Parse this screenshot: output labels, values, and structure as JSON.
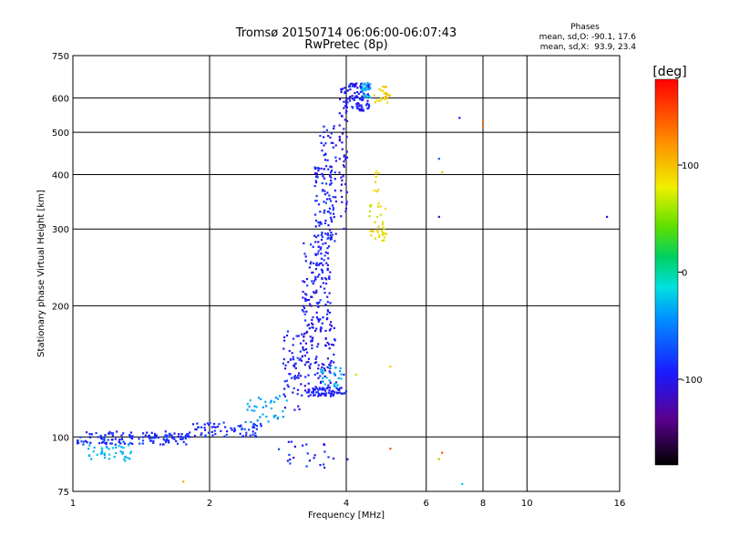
{
  "chart_data": {
    "type": "scatter",
    "title": "Tromsø 20150714 06:06:00-06:07:43",
    "subtitle": "RwPretec (8p)",
    "xlabel": "Frequency [MHz]",
    "ylabel": "Stationary phase Virtual Height [km]",
    "x_scale": "log",
    "y_scale": "log",
    "xlim": [
      1,
      16
    ],
    "ylim": [
      75,
      750
    ],
    "x_ticks": [
      {
        "value": 1,
        "label": "1"
      },
      {
        "value": 2,
        "label": "2"
      },
      {
        "value": 4,
        "label": "4"
      },
      {
        "value": 6,
        "label": "6"
      },
      {
        "value": 8,
        "label": "8"
      },
      {
        "value": 10,
        "label": "10"
      },
      {
        "value": 16,
        "label": "16"
      }
    ],
    "y_ticks": [
      {
        "value": 75,
        "label": "75"
      },
      {
        "value": 100,
        "label": "100"
      },
      {
        "value": 200,
        "label": "200"
      },
      {
        "value": 300,
        "label": "300"
      },
      {
        "value": 400,
        "label": "400"
      },
      {
        "value": 500,
        "label": "500"
      },
      {
        "value": 600,
        "label": "600"
      },
      {
        "value": 750,
        "label": "750"
      }
    ],
    "grid": true,
    "stats": {
      "heading": "Phases",
      "line_o": "mean, sd,O: -90.1, 17.6",
      "line_x": "mean, sd,X:  93.9, 23.4"
    },
    "colorbar": {
      "label": "[deg]",
      "range": [
        -180,
        180
      ],
      "ticks": [
        {
          "value": 100,
          "label": "100"
        },
        {
          "value": 0,
          "label": "0"
        },
        {
          "value": -100,
          "label": "-100"
        }
      ]
    },
    "point_groups": [
      {
        "phase": -95,
        "x_range": [
          1.02,
          1.8
        ],
        "y_range": [
          96,
          103
        ],
        "count": 140
      },
      {
        "phase": -40,
        "x_range": [
          1.08,
          1.35
        ],
        "y_range": [
          88,
          96
        ],
        "count": 40
      },
      {
        "phase": -95,
        "x_range": [
          1.8,
          2.6
        ],
        "y_range": [
          100,
          108
        ],
        "count": 70
      },
      {
        "phase": -50,
        "x_range": [
          2.4,
          3.0
        ],
        "y_range": [
          108,
          125
        ],
        "count": 35
      },
      {
        "phase": -100,
        "x_range": [
          2.9,
          3.2
        ],
        "y_range": [
          115,
          175
        ],
        "count": 60
      },
      {
        "phase": -105,
        "x_range": [
          3.2,
          3.8
        ],
        "y_range": [
          125,
          185
        ],
        "count": 120
      },
      {
        "phase": -100,
        "x_range": [
          3.3,
          4.0
        ],
        "y_range": [
          124,
          130
        ],
        "count": 60
      },
      {
        "phase": -45,
        "x_range": [
          3.5,
          3.9
        ],
        "y_range": [
          130,
          145
        ],
        "count": 25
      },
      {
        "phase": -100,
        "x_range": [
          3.2,
          3.7
        ],
        "y_range": [
          185,
          280
        ],
        "count": 120
      },
      {
        "phase": -100,
        "x_range": [
          3.4,
          3.8
        ],
        "y_range": [
          280,
          420
        ],
        "count": 110
      },
      {
        "phase": -100,
        "x_range": [
          3.5,
          3.8
        ],
        "y_range": [
          420,
          520
        ],
        "count": 25
      },
      {
        "phase": -110,
        "x_range": [
          3.85,
          4.02
        ],
        "y_range": [
          300,
          640
        ],
        "count": 60
      },
      {
        "phase": -100,
        "x_range": [
          4.0,
          4.5
        ],
        "y_range": [
          560,
          650
        ],
        "count": 90
      },
      {
        "phase": -40,
        "x_range": [
          4.3,
          4.55
        ],
        "y_range": [
          600,
          650
        ],
        "count": 25
      },
      {
        "phase": 100,
        "x_range": [
          4.6,
          5.0
        ],
        "y_range": [
          580,
          640
        ],
        "count": 25
      },
      {
        "phase": 90,
        "x_range": [
          4.5,
          4.9
        ],
        "y_range": [
          280,
          345
        ],
        "count": 35
      },
      {
        "phase": 90,
        "x_range": [
          4.6,
          4.8
        ],
        "y_range": [
          360,
          410
        ],
        "count": 8
      },
      {
        "phase": -100,
        "x_range": [
          2.8,
          4.2
        ],
        "y_range": [
          85,
          98
        ],
        "count": 25
      }
    ],
    "isolated_points": [
      {
        "x": 6.4,
        "y": 320,
        "phase": -110
      },
      {
        "x": 6.4,
        "y": 435,
        "phase": -80
      },
      {
        "x": 6.5,
        "y": 405,
        "phase": 110
      },
      {
        "x": 7.1,
        "y": 540,
        "phase": -100
      },
      {
        "x": 8.0,
        "y": 515,
        "phase": 140
      },
      {
        "x": 8.0,
        "y": 530,
        "phase": 140
      },
      {
        "x": 15.0,
        "y": 320,
        "phase": -110
      },
      {
        "x": 5.0,
        "y": 94,
        "phase": 150
      },
      {
        "x": 6.4,
        "y": 89,
        "phase": 60
      },
      {
        "x": 6.5,
        "y": 92,
        "phase": 150
      },
      {
        "x": 7.2,
        "y": 78,
        "phase": -30
      },
      {
        "x": 5.0,
        "y": 145,
        "phase": 100
      },
      {
        "x": 1.75,
        "y": 79,
        "phase": 120
      },
      {
        "x": 3.95,
        "y": 139,
        "phase": -100
      },
      {
        "x": 4.2,
        "y": 139,
        "phase": 80
      }
    ]
  }
}
